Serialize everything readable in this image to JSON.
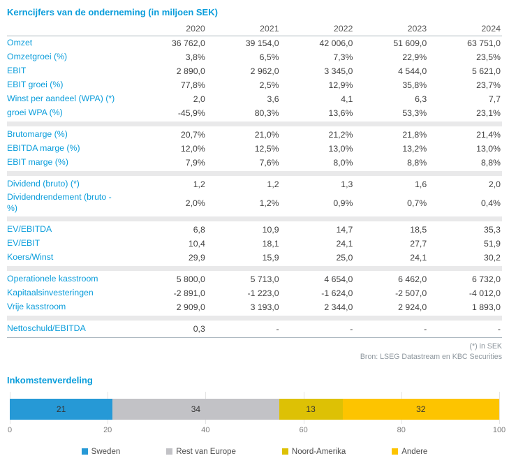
{
  "page": {
    "title": "Kerncijfers van de onderneming (in miljoen SEK)",
    "footnote": "(*) in SEK",
    "source": "Bron: LSEG Datastream en KBC Securities",
    "chart_title": "Inkomstenverdeling"
  },
  "table": {
    "years": [
      "2020",
      "2021",
      "2022",
      "2023",
      "2024"
    ],
    "sections": [
      {
        "rows": [
          {
            "label": "Omzet",
            "values": [
              "36 762,0",
              "39 154,0",
              "42 006,0",
              "51 609,0",
              "63 751,0"
            ]
          },
          {
            "label": "Omzetgroei (%)",
            "values": [
              "3,8%",
              "6,5%",
              "7,3%",
              "22,9%",
              "23,5%"
            ]
          },
          {
            "label": "EBIT",
            "values": [
              "2 890,0",
              "2 962,0",
              "3 345,0",
              "4 544,0",
              "5 621,0"
            ]
          },
          {
            "label": "EBIT groei (%)",
            "values": [
              "77,8%",
              "2,5%",
              "12,9%",
              "35,8%",
              "23,7%"
            ]
          },
          {
            "label": "Winst per aandeel (WPA) (*)",
            "values": [
              "2,0",
              "3,6",
              "4,1",
              "6,3",
              "7,7"
            ]
          },
          {
            "label": "groei WPA (%)",
            "values": [
              "-45,9%",
              "80,3%",
              "13,6%",
              "53,3%",
              "23,1%"
            ]
          }
        ]
      },
      {
        "rows": [
          {
            "label": "Brutomarge (%)",
            "values": [
              "20,7%",
              "21,0%",
              "21,2%",
              "21,8%",
              "21,4%"
            ]
          },
          {
            "label": "EBITDA marge (%)",
            "values": [
              "12,0%",
              "12,5%",
              "13,0%",
              "13,2%",
              "13,0%"
            ]
          },
          {
            "label": "EBIT marge (%)",
            "values": [
              "7,9%",
              "7,6%",
              "8,0%",
              "8,8%",
              "8,8%"
            ]
          }
        ]
      },
      {
        "rows": [
          {
            "label": "Dividend (bruto) (*)",
            "values": [
              "1,2",
              "1,2",
              "1,3",
              "1,6",
              "2,0"
            ]
          },
          {
            "label": "Dividendrendement (bruto - %)",
            "values": [
              "2,0%",
              "1,2%",
              "0,9%",
              "0,7%",
              "0,4%"
            ]
          }
        ]
      },
      {
        "rows": [
          {
            "label": "EV/EBITDA",
            "values": [
              "6,8",
              "10,9",
              "14,7",
              "18,5",
              "35,3"
            ]
          },
          {
            "label": "EV/EBIT",
            "values": [
              "10,4",
              "18,1",
              "24,1",
              "27,7",
              "51,9"
            ]
          },
          {
            "label": "Koers/Winst",
            "values": [
              "29,9",
              "15,9",
              "25,0",
              "24,1",
              "30,2"
            ]
          }
        ]
      },
      {
        "rows": [
          {
            "label": "Operationele kasstroom",
            "values": [
              "5 800,0",
              "5 713,0",
              "4 654,0",
              "6 462,0",
              "6 732,0"
            ]
          },
          {
            "label": "Kapitaalsinvesteringen",
            "values": [
              "-2 891,0",
              "-1 223,0",
              "-1 624,0",
              "-2 507,0",
              "-4 012,0"
            ]
          },
          {
            "label": "Vrije kasstroom",
            "values": [
              "2 909,0",
              "3 193,0",
              "2 344,0",
              "2 924,0",
              "1 893,0"
            ]
          }
        ]
      },
      {
        "rows": [
          {
            "label": "Nettoschuld/EBITDA",
            "values": [
              "0,3",
              "-",
              "-",
              "-",
              "-"
            ]
          }
        ]
      }
    ]
  },
  "chart_data": {
    "type": "bar",
    "subtype": "stacked-horizontal",
    "title": "Inkomstenverdeling",
    "series": [
      {
        "name": "Sweden",
        "value": 21,
        "color": "#2699d6"
      },
      {
        "name": "Rest van Europe",
        "value": 34,
        "color": "#c2c2c6"
      },
      {
        "name": "Noord-Amerika",
        "value": 13,
        "color": "#ddc105"
      },
      {
        "name": "Andere",
        "value": 32,
        "color": "#fdc400"
      }
    ],
    "x_ticks": [
      0,
      20,
      40,
      60,
      80,
      100
    ],
    "xlim": [
      0,
      100
    ],
    "grid": true,
    "legend_position": "bottom"
  },
  "colors": {
    "accent_blue": "#0a9ddb",
    "value_text": "#3f3f3f",
    "separator": "#e9e9ea",
    "rule": "#a8b4bc"
  }
}
